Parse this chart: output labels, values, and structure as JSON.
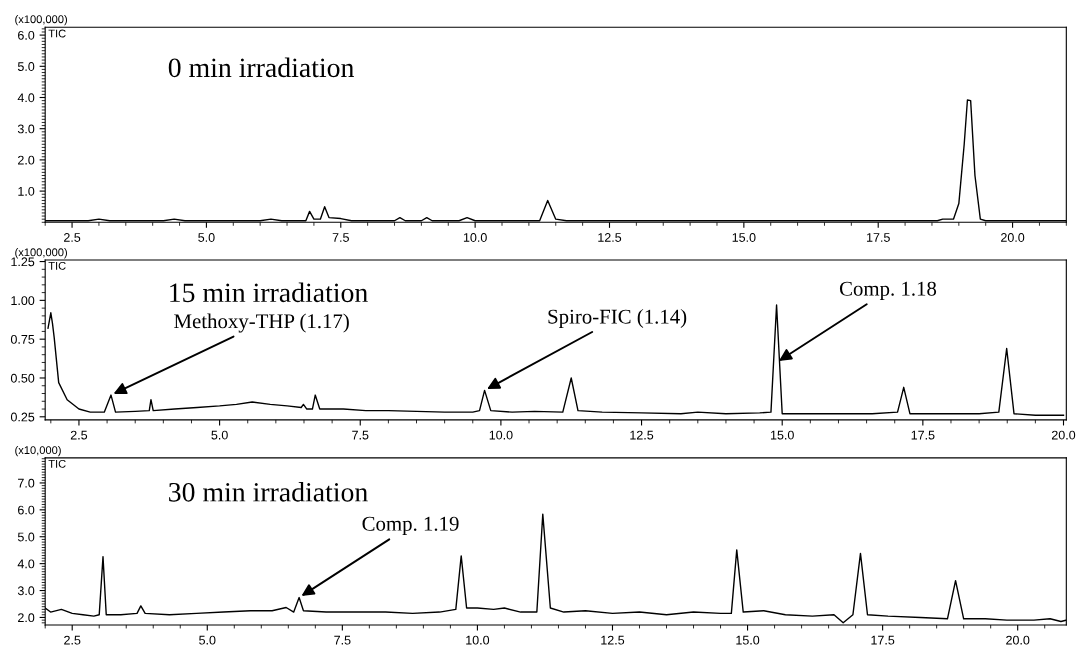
{
  "chart_data": [
    {
      "type": "line",
      "title": "0 min irradiation",
      "annotations": [
        "(x100,000)",
        "TIC"
      ],
      "x": [
        2.0,
        2.8,
        3.0,
        3.2,
        4.2,
        4.4,
        4.6,
        6.0,
        6.2,
        6.4,
        6.85,
        6.92,
        7.0,
        7.12,
        7.2,
        7.28,
        7.5,
        7.7,
        8.5,
        8.6,
        8.7,
        9.0,
        9.1,
        9.2,
        9.7,
        9.85,
        10.0,
        11.2,
        11.35,
        11.5,
        11.7,
        18.6,
        18.7,
        18.9,
        19.0,
        19.1,
        19.16,
        19.22,
        19.3,
        19.4,
        19.5,
        21.0
      ],
      "series": [
        {
          "color": "#000000",
          "values": [
            0.05,
            0.05,
            0.1,
            0.05,
            0.05,
            0.1,
            0.05,
            0.05,
            0.1,
            0.05,
            0.05,
            0.35,
            0.1,
            0.1,
            0.5,
            0.15,
            0.12,
            0.05,
            0.05,
            0.15,
            0.05,
            0.05,
            0.15,
            0.05,
            0.05,
            0.15,
            0.05,
            0.05,
            0.7,
            0.1,
            0.05,
            0.05,
            0.1,
            0.1,
            0.6,
            2.5,
            3.92,
            3.9,
            1.5,
            0.1,
            0.05,
            0.05
          ]
        }
      ],
      "xlim": [
        2.0,
        21.0
      ],
      "ylim": [
        0,
        6.25
      ],
      "xticks": [
        2.5,
        {
          "value": 5,
          "label": "5.0"
        },
        7.5,
        {
          "value": 10,
          "label": "10.0"
        },
        12.5,
        {
          "value": 15,
          "label": "15.0"
        },
        17.5,
        {
          "value": 20,
          "label": "20.0"
        }
      ],
      "yticks": [
        {
          "value": 1,
          "label": "1.0"
        },
        {
          "value": 2,
          "label": "2.0"
        },
        {
          "value": 3,
          "label": "3.0"
        },
        {
          "value": 4,
          "label": "4.0"
        },
        {
          "value": 5,
          "label": "5.0"
        },
        {
          "value": 6,
          "label": "6.0"
        }
      ]
    },
    {
      "type": "line",
      "title": "15 min irradiation",
      "annotations": [
        "(x100,000)",
        "TIC",
        {
          "text": "Methoxy-THP (1.17)",
          "x": 3.07,
          "y": 0.39
        },
        {
          "text": "Spiro-FIC (1.14)",
          "x": 9.71,
          "y": 0.42
        },
        {
          "text": "Comp. 1.18",
          "x": 14.9,
          "y": 0.6
        }
      ],
      "x": [
        1.95,
        2.0,
        2.03,
        2.06,
        2.14,
        2.29,
        2.5,
        2.7,
        2.95,
        3.07,
        3.15,
        3.5,
        3.75,
        3.78,
        3.82,
        4.2,
        4.6,
        5.0,
        5.3,
        5.58,
        5.9,
        6.2,
        6.45,
        6.49,
        6.55,
        6.65,
        6.7,
        6.78,
        7.2,
        7.6,
        8.0,
        8.5,
        9.0,
        9.5,
        9.62,
        9.71,
        9.82,
        10.2,
        10.6,
        11.1,
        11.25,
        11.37,
        11.8,
        12.5,
        13.2,
        13.5,
        14.0,
        14.6,
        14.8,
        14.9,
        15.0,
        15.4,
        16.0,
        16.6,
        17.05,
        17.16,
        17.27,
        17.8,
        18.5,
        18.85,
        18.99,
        19.12,
        19.5,
        20.0
      ],
      "series": [
        {
          "color": "#000000",
          "values": [
            0.82,
            0.92,
            0.85,
            0.76,
            0.47,
            0.36,
            0.3,
            0.28,
            0.28,
            0.39,
            0.28,
            0.285,
            0.29,
            0.36,
            0.29,
            0.3,
            0.31,
            0.32,
            0.33,
            0.345,
            0.33,
            0.32,
            0.31,
            0.33,
            0.3,
            0.3,
            0.39,
            0.3,
            0.3,
            0.29,
            0.29,
            0.285,
            0.28,
            0.28,
            0.29,
            0.42,
            0.29,
            0.28,
            0.285,
            0.28,
            0.5,
            0.29,
            0.28,
            0.275,
            0.27,
            0.28,
            0.27,
            0.275,
            0.28,
            0.97,
            0.27,
            0.27,
            0.27,
            0.27,
            0.28,
            0.44,
            0.27,
            0.27,
            0.27,
            0.28,
            0.69,
            0.27,
            0.26,
            0.26
          ]
        }
      ],
      "xlim": [
        1.9,
        20.05
      ],
      "ylim": [
        0.23,
        1.26
      ],
      "xticks": [
        2.5,
        {
          "value": 5,
          "label": "5.0"
        },
        7.5,
        {
          "value": 10,
          "label": "10.0"
        },
        12.5,
        {
          "value": 15,
          "label": "15.0"
        },
        17.5,
        {
          "value": 20,
          "label": "20.0"
        }
      ],
      "yticks": [
        0.25,
        {
          "value": 0.5,
          "label": "0.50"
        },
        0.75,
        {
          "value": 1,
          "label": "1.00"
        },
        1.25
      ]
    },
    {
      "type": "line",
      "title": "30 min irradiation",
      "annotations": [
        "(x10,000)",
        "TIC",
        {
          "text": "Comp. 1.19",
          "x": 6.7,
          "y": 2.74
        }
      ],
      "x": [
        2.0,
        2.1,
        2.3,
        2.5,
        2.7,
        2.9,
        3.0,
        3.07,
        3.13,
        3.4,
        3.7,
        3.77,
        3.85,
        4.3,
        4.8,
        5.3,
        5.8,
        6.2,
        6.46,
        6.6,
        6.7,
        6.78,
        7.2,
        7.8,
        8.3,
        8.8,
        9.3,
        9.6,
        9.7,
        9.8,
        10.0,
        10.3,
        10.5,
        10.8,
        11.1,
        11.21,
        11.35,
        11.6,
        12.0,
        12.5,
        13.0,
        13.5,
        14.0,
        14.5,
        14.7,
        14.8,
        14.92,
        15.3,
        15.7,
        16.2,
        16.6,
        16.77,
        16.95,
        17.09,
        17.22,
        17.6,
        18.2,
        18.7,
        18.85,
        19.0,
        19.4,
        19.8,
        20.3,
        20.6,
        20.8,
        20.9
      ],
      "series": [
        {
          "color": "#000000",
          "values": [
            2.35,
            2.2,
            2.3,
            2.15,
            2.1,
            2.05,
            2.1,
            4.26,
            2.1,
            2.1,
            2.15,
            2.43,
            2.15,
            2.1,
            2.15,
            2.2,
            2.25,
            2.25,
            2.37,
            2.2,
            2.74,
            2.25,
            2.2,
            2.2,
            2.2,
            2.15,
            2.2,
            2.3,
            4.29,
            2.35,
            2.35,
            2.3,
            2.35,
            2.2,
            2.2,
            5.84,
            2.35,
            2.2,
            2.25,
            2.15,
            2.2,
            2.1,
            2.2,
            2.15,
            2.15,
            4.51,
            2.2,
            2.25,
            2.1,
            2.05,
            2.1,
            1.8,
            2.1,
            4.38,
            2.1,
            2.05,
            2.0,
            1.95,
            3.37,
            1.95,
            1.95,
            1.9,
            1.9,
            1.95,
            1.85,
            1.9
          ]
        }
      ],
      "xlim": [
        2.0,
        20.9
      ],
      "ylim": [
        1.72,
        7.93
      ],
      "xticks": [
        2.5,
        {
          "value": 5,
          "label": "5.0"
        },
        7.5,
        {
          "value": 10,
          "label": "10.0"
        },
        12.5,
        {
          "value": 15,
          "label": "15.0"
        },
        17.5,
        {
          "value": 20,
          "label": "20.0"
        }
      ],
      "yticks": [
        {
          "value": 2,
          "label": "2.0"
        },
        {
          "value": 3,
          "label": "3.0"
        },
        {
          "value": 4,
          "label": "4.0"
        },
        {
          "value": 5,
          "label": "5.0"
        },
        {
          "value": 6,
          "label": "6.0"
        },
        {
          "value": 7,
          "label": "7.0"
        }
      ]
    }
  ]
}
